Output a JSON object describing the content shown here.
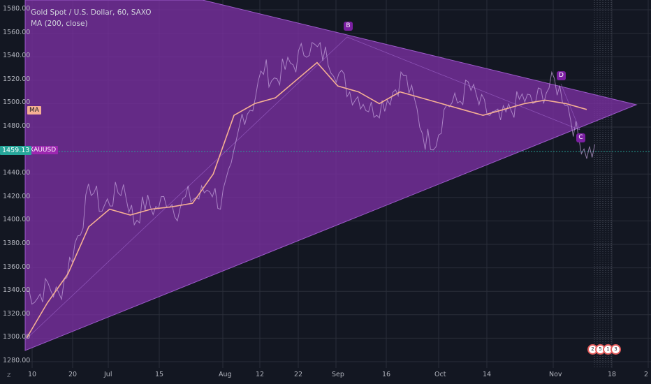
{
  "legend": {
    "symbol_title": "Gold Spot / U.S. Dollar, 60, SAXO",
    "indicator": "MA (200, close)"
  },
  "price_axis": {
    "labels": [
      "1580.00",
      "1560.00",
      "1540.00",
      "1520.00",
      "1500.00",
      "1480.00",
      "1459.13",
      "1440.00",
      "1420.00",
      "1400.00",
      "1380.00",
      "1360.00",
      "1340.00",
      "1320.00",
      "1300.00",
      "1280.00"
    ],
    "current_price": "1459.13",
    "current_price_color": "#26a69a",
    "ma_tag": "MA",
    "ma_tag_color": "#f6b093",
    "symbol_tag": "XAUUSD",
    "symbol_tag_color": "#9c27b0"
  },
  "time_axis": {
    "labels": [
      "10",
      "20",
      "Jul",
      "15",
      "Aug",
      "12",
      "22",
      "Sep",
      "16",
      "Oct",
      "14",
      "Nov",
      "18",
      "2"
    ]
  },
  "pattern": {
    "fill_color": "#7b2fa3",
    "points": [
      {
        "label": "B"
      },
      {
        "label": "D"
      },
      {
        "label": "C"
      }
    ]
  },
  "corner": "Z",
  "events": [
    "2",
    "5",
    "1",
    "3"
  ],
  "colors": {
    "background": "#131722",
    "ma_line": "#f6b093",
    "price_line": "#c8a8e0",
    "grid": "#2a2e39"
  },
  "chart_data": {
    "type": "line",
    "title": "Gold Spot / U.S. Dollar, 60, SAXO",
    "series": [
      {
        "name": "MA (200, close)"
      }
    ],
    "ylim": [
      1280,
      1580
    ],
    "x_tick_labels": [
      "10",
      "20",
      "Jul",
      "15",
      "Aug",
      "12",
      "22",
      "Sep",
      "16",
      "Oct",
      "14",
      "Nov",
      "18",
      "2"
    ],
    "y_tick_labels": [
      "1580.00",
      "1560.00",
      "1540.00",
      "1520.00",
      "1500.00",
      "1480.00",
      "1440.00",
      "1420.00",
      "1400.00",
      "1380.00",
      "1360.00",
      "1340.00",
      "1320.00",
      "1300.00",
      "1280.00"
    ],
    "last_price": 1459.13,
    "approx_price_path": [
      1340,
      1335,
      1345,
      1335,
      1365,
      1395,
      1430,
      1410,
      1420,
      1430,
      1400,
      1415,
      1410,
      1420,
      1410,
      1420,
      1420,
      1430,
      1415,
      1440,
      1490,
      1500,
      1530,
      1520,
      1530,
      1535,
      1550,
      1545,
      1540,
      1525,
      1510,
      1505,
      1495,
      1500,
      1510,
      1525,
      1500,
      1470,
      1470,
      1500,
      1500,
      1515,
      1500,
      1490,
      1485,
      1495,
      1505,
      1500,
      1510,
      1518,
      1505,
      1475,
      1460
    ],
    "approx_ma_path": [
      1300,
      1330,
      1355,
      1395,
      1410,
      1405,
      1410,
      1412,
      1415,
      1440,
      1490,
      1500,
      1505,
      1520,
      1535,
      1515,
      1510,
      1500,
      1510,
      1505,
      1500,
      1495,
      1490,
      1495,
      1500,
      1503,
      1500,
      1495
    ]
  }
}
